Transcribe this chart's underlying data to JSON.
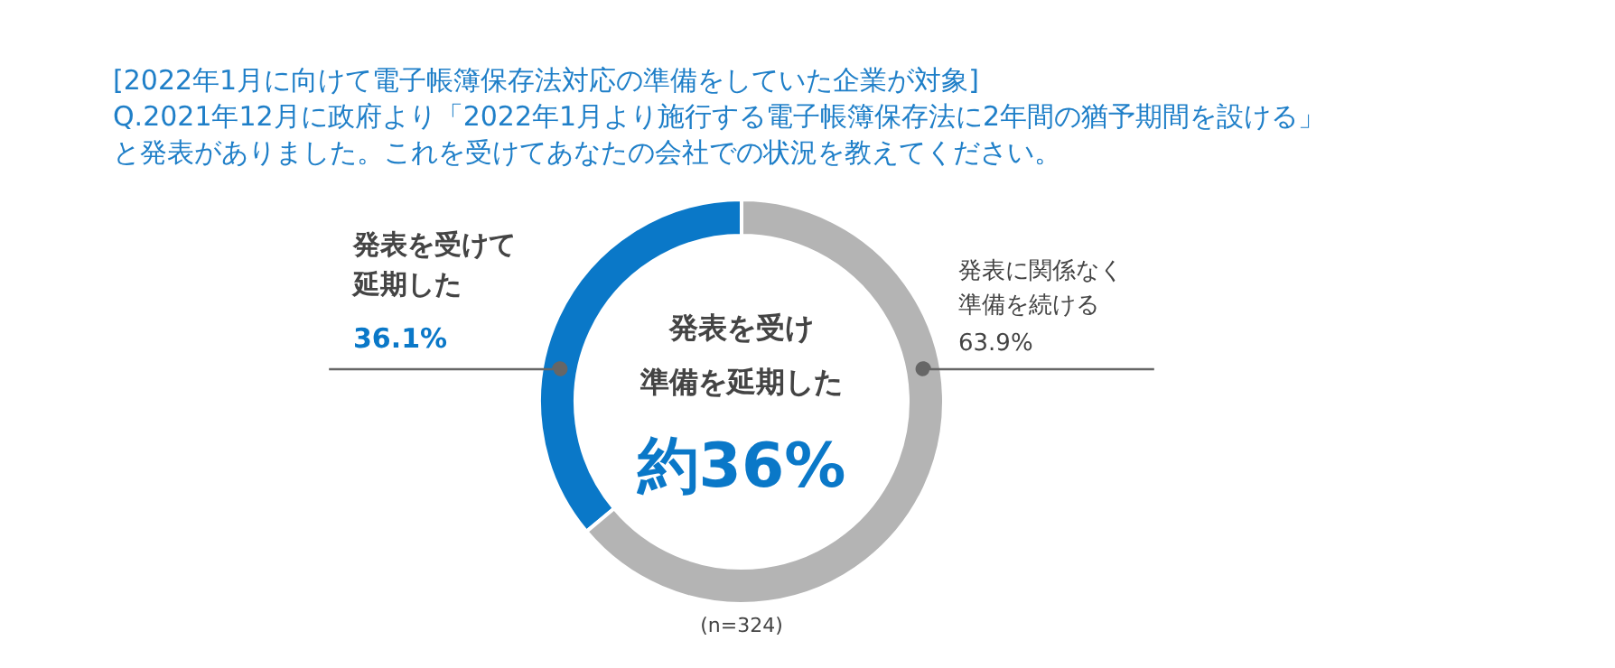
{
  "chart_data": {
    "type": "donut",
    "title": "[2022年1月に向けて電子帳簿保存法対応の準備をしていた企業が対象]",
    "subtitle": "Q.2021年12月に政府より「2022年1月より施行する電子帳簿保存法に2年間の猶予期間を設ける」と発表がありました。これを受けてあなたの会社での状況を教えてください。",
    "categories": [
      "発表を受けて延期した",
      "発表に関係なく準備を続ける"
    ],
    "values": [
      36.1,
      63.9
    ],
    "colors": [
      "#0a78c8",
      "#b4b4b4"
    ],
    "value_labels": [
      "36.1%",
      "63.9%"
    ],
    "annotations": [
      "発表を受け",
      "準備を延期した",
      "約36%",
      "(n=324)"
    ]
  }
}
